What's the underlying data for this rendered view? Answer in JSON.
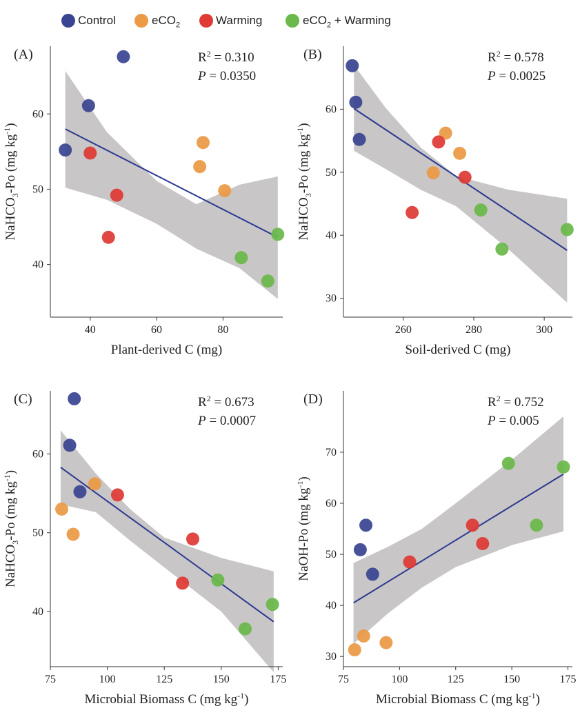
{
  "legend": [
    {
      "key": "control",
      "label": "Control",
      "sub": "",
      "suffix": "",
      "color": "#3a4591"
    },
    {
      "key": "eco2",
      "label": "eCO",
      "sub": "2",
      "suffix": "",
      "color": "#eb9a45"
    },
    {
      "key": "warming",
      "label": "Warming",
      "sub": "",
      "suffix": "",
      "color": "#df3a36"
    },
    {
      "key": "eco2w",
      "label": "eCO",
      "sub": "2",
      "suffix": " + Warming",
      "color": "#6ab94a"
    }
  ],
  "chart_data": [
    {
      "type": "scatter",
      "panel": "(A)",
      "xlabel": "Plant-derived C (mg)",
      "ylabel": "NaHCO3-Po (mg kg-1)",
      "xlim": [
        28,
        98
      ],
      "ylim": [
        33,
        69
      ],
      "xticks": [
        40,
        60,
        80
      ],
      "yticks": [
        40,
        50,
        60
      ],
      "r2": "0.310",
      "p": "0.0350",
      "fit": {
        "x": [
          32.5,
          96.5
        ],
        "y": [
          58.0,
          43.6
        ]
      },
      "ci_upper": [
        [
          32.5,
          65.7
        ],
        [
          45,
          57.6
        ],
        [
          60,
          51.1
        ],
        [
          72,
          48.0
        ],
        [
          85,
          50.6
        ],
        [
          96.5,
          51.7
        ]
      ],
      "ci_lower": [
        [
          96.5,
          35.4
        ],
        [
          85,
          39.5
        ],
        [
          72,
          42.1
        ],
        [
          60,
          45.4
        ],
        [
          45,
          48.6
        ],
        [
          32.5,
          50.2
        ]
      ],
      "points": [
        {
          "group": "control",
          "x": 32.5,
          "y": 55.2
        },
        {
          "group": "control",
          "x": 39.5,
          "y": 61.1
        },
        {
          "group": "control",
          "x": 50,
          "y": 67.6
        },
        {
          "group": "eco2",
          "x": 74,
          "y": 56.2
        },
        {
          "group": "eco2",
          "x": 73,
          "y": 53.0
        },
        {
          "group": "eco2",
          "x": 80.5,
          "y": 49.8
        },
        {
          "group": "warming",
          "x": 40,
          "y": 54.8
        },
        {
          "group": "warming",
          "x": 48,
          "y": 49.2
        },
        {
          "group": "warming",
          "x": 45.5,
          "y": 43.6
        },
        {
          "group": "eco2w",
          "x": 96.5,
          "y": 44.0
        },
        {
          "group": "eco2w",
          "x": 85.5,
          "y": 40.9
        },
        {
          "group": "eco2w",
          "x": 93.5,
          "y": 37.8
        }
      ],
      "r2_label": "R",
      "p_label": "P"
    },
    {
      "type": "scatter",
      "panel": "(B)",
      "xlabel": "Soil-derived C (mg)",
      "ylabel": "NaHCO3-Po (mg kg-1)",
      "xlim": [
        243,
        308
      ],
      "ylim": [
        27,
        70
      ],
      "xticks": [
        260,
        280,
        300
      ],
      "yticks": [
        30,
        40,
        50,
        60
      ],
      "r2": "0.578",
      "p": "0.0025",
      "fit": {
        "x": [
          246,
          306.5
        ],
        "y": [
          60.1,
          37.6
        ]
      },
      "ci_upper": [
        [
          246,
          67.0
        ],
        [
          255,
          60.2
        ],
        [
          265,
          53.9
        ],
        [
          275,
          49.4
        ],
        [
          290,
          47.2
        ],
        [
          306.5,
          45.8
        ]
      ],
      "ci_lower": [
        [
          306.5,
          29.3
        ],
        [
          290,
          37.7
        ],
        [
          275,
          44.6
        ],
        [
          265,
          47.2
        ],
        [
          255,
          50.5
        ],
        [
          246,
          53.4
        ]
      ],
      "points": [
        {
          "group": "control",
          "x": 245.5,
          "y": 66.9
        },
        {
          "group": "control",
          "x": 246.5,
          "y": 61.1
        },
        {
          "group": "control",
          "x": 247.5,
          "y": 55.2
        },
        {
          "group": "eco2",
          "x": 272,
          "y": 56.2
        },
        {
          "group": "eco2",
          "x": 276,
          "y": 53.0
        },
        {
          "group": "eco2",
          "x": 268.5,
          "y": 49.9
        },
        {
          "group": "warming",
          "x": 270,
          "y": 54.8
        },
        {
          "group": "warming",
          "x": 277.5,
          "y": 49.2
        },
        {
          "group": "warming",
          "x": 262.5,
          "y": 43.6
        },
        {
          "group": "eco2w",
          "x": 282,
          "y": 44.0
        },
        {
          "group": "eco2w",
          "x": 306.5,
          "y": 40.9
        },
        {
          "group": "eco2w",
          "x": 288,
          "y": 37.8
        }
      ],
      "r2_label": "R",
      "p_label": "P"
    },
    {
      "type": "scatter",
      "panel": "(C)",
      "xlabel": "Microbial Biomass C (mg kg-1)",
      "ylabel": "NaHCO3-Po (mg kg-1)",
      "xlim": [
        75,
        177
      ],
      "ylim": [
        33,
        68
      ],
      "xticks": [
        75,
        100,
        125,
        150,
        175
      ],
      "yticks": [
        40,
        50,
        60
      ],
      "r2": "0.673",
      "p": "0.0007",
      "fit": {
        "x": [
          79.5,
          173
        ],
        "y": [
          58.3,
          38.7
        ]
      },
      "ci_upper": [
        [
          79.5,
          63.0
        ],
        [
          95,
          57.5
        ],
        [
          110,
          53.0
        ],
        [
          125,
          49.4
        ],
        [
          150,
          46.8
        ],
        [
          173,
          45.1
        ]
      ],
      "ci_lower": [
        [
          173,
          32.3
        ],
        [
          150,
          40.0
        ],
        [
          125,
          45.6
        ],
        [
          110,
          49.0
        ],
        [
          95,
          52.6
        ],
        [
          79.5,
          53.6
        ]
      ],
      "points": [
        {
          "group": "control",
          "x": 85.5,
          "y": 67.0
        },
        {
          "group": "control",
          "x": 83.5,
          "y": 61.1
        },
        {
          "group": "control",
          "x": 88,
          "y": 55.2
        },
        {
          "group": "eco2",
          "x": 94.5,
          "y": 56.2
        },
        {
          "group": "eco2",
          "x": 80,
          "y": 53.0
        },
        {
          "group": "eco2",
          "x": 85,
          "y": 49.8
        },
        {
          "group": "warming",
          "x": 104.5,
          "y": 54.8
        },
        {
          "group": "warming",
          "x": 137.5,
          "y": 49.2
        },
        {
          "group": "warming",
          "x": 133,
          "y": 43.6
        },
        {
          "group": "eco2w",
          "x": 148.5,
          "y": 44.0
        },
        {
          "group": "eco2w",
          "x": 172.5,
          "y": 40.9
        },
        {
          "group": "eco2w",
          "x": 160.5,
          "y": 37.8
        }
      ],
      "r2_label": "R",
      "p_label": "P"
    },
    {
      "type": "scatter",
      "panel": "(D)",
      "xlabel": "Microbial Biomass C (mg kg-1)",
      "ylabel": "NaOH-Po (mg kg-1)",
      "xlim": [
        75,
        177
      ],
      "ylim": [
        28,
        82
      ],
      "xticks": [
        75,
        100,
        125,
        150,
        175
      ],
      "yticks": [
        30,
        40,
        50,
        60,
        70
      ],
      "r2": "0.752",
      "p": "0.005",
      "fit": {
        "x": [
          79.5,
          173
        ],
        "y": [
          40.5,
          65.7
        ]
      },
      "ci_upper": [
        [
          79.5,
          48.3
        ],
        [
          95,
          51.5
        ],
        [
          110,
          55.0
        ],
        [
          125,
          60.0
        ],
        [
          150,
          68.5
        ],
        [
          173,
          77.0
        ]
      ],
      "ci_lower": [
        [
          173,
          54.5
        ],
        [
          150,
          51.8
        ],
        [
          125,
          47.5
        ],
        [
          110,
          43.5
        ],
        [
          95,
          38.5
        ],
        [
          79.5,
          32.5
        ]
      ],
      "points": [
        {
          "group": "control",
          "x": 85,
          "y": 55.7
        },
        {
          "group": "control",
          "x": 82.5,
          "y": 50.9
        },
        {
          "group": "control",
          "x": 88,
          "y": 46.1
        },
        {
          "group": "eco2",
          "x": 84,
          "y": 34.0
        },
        {
          "group": "eco2",
          "x": 94,
          "y": 32.7
        },
        {
          "group": "eco2",
          "x": 80,
          "y": 31.3
        },
        {
          "group": "warming",
          "x": 104.5,
          "y": 48.5
        },
        {
          "group": "warming",
          "x": 132.5,
          "y": 55.7
        },
        {
          "group": "warming",
          "x": 137,
          "y": 52.1
        },
        {
          "group": "eco2w",
          "x": 148.5,
          "y": 67.8
        },
        {
          "group": "eco2w",
          "x": 173,
          "y": 67.1
        },
        {
          "group": "eco2w",
          "x": 161,
          "y": 55.7
        }
      ],
      "r2_label": "R",
      "p_label": "P"
    }
  ]
}
